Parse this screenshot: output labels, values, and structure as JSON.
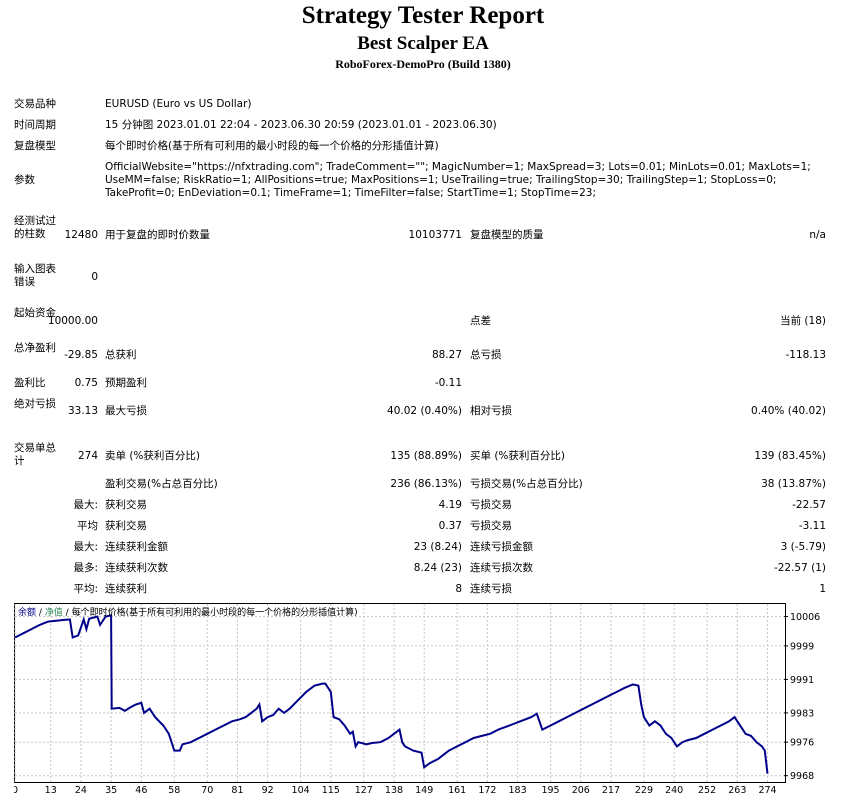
{
  "header": {
    "title": "Strategy Tester Report",
    "subtitle": "Best Scalper EA",
    "server": "RoboForex-DemoPro (Build 1380)"
  },
  "info": {
    "symbol_label": "交易品种",
    "symbol_value": "EURUSD (Euro vs US Dollar)",
    "period_label": "时间周期",
    "period_value": "15 分钟图 2023.01.01 22:04 - 2023.06.30 20:59 (2023.01.01 - 2023.06.30)",
    "model_label": "复盘模型",
    "model_value": "每个即时价格(基于所有可利用的最小时段的每一个价格的分形插值计算)",
    "params_label": "参数",
    "params_value": "OfficialWebsite=\"https://nfxtrading.com\"; TradeComment=\"\"; MagicNumber=1; MaxSpread=3; Lots=0.01; MinLots=0.01; MaxLots=1; UseMM=false; RiskRatio=1; AllPositions=true; MaxPositions=1; UseTrailing=true; TrailingStop=30; TrailingStep=1; StopLoss=0; TakeProfit=0; EnDeviation=0.1; TimeFrame=1; TimeFilter=false; StartTime=1; StopTime=23;"
  },
  "stats": {
    "bars_label": "经测试过的柱数",
    "bars_value": "12480",
    "ticks_label": "用于复盘的即时价数量",
    "ticks_value": "10103771",
    "quality_label": "复盘模型的质量",
    "quality_value": "n/a",
    "errors_label": "输入图表错误",
    "errors_value": "0",
    "deposit_label": "起始资金",
    "deposit_value": "10000.00",
    "spread_label": "点差",
    "spread_value": "当前 (18)",
    "net_label": "总净盈利",
    "net_value": "-29.85",
    "gross_profit_label": "总获利",
    "gross_profit_value": "88.27",
    "gross_loss_label": "总亏损",
    "gross_loss_value": "-118.13",
    "pf_label": "盈利比",
    "pf_value": "0.75",
    "expected_label": "预期盈利",
    "expected_value": "-0.11",
    "abs_dd_label": "绝对亏损",
    "abs_dd_value": "33.13",
    "max_dd_label": "最大亏损",
    "max_dd_value": "40.02 (0.40%)",
    "rel_dd_label": "相对亏损",
    "rel_dd_value": "0.40% (40.02)",
    "trades_label": "交易单总计",
    "trades_value": "274",
    "short_label": "卖单 (%获利百分比)",
    "short_value": "135 (88.89%)",
    "long_label": "买单 (%获利百分比)",
    "long_value": "139 (83.45%)",
    "profit_trades_label": "盈利交易(%占总百分比)",
    "profit_trades_value": "236 (86.13%)",
    "loss_trades_label": "亏损交易(%占总百分比)",
    "loss_trades_value": "38 (13.87%)",
    "largest_prefix": "最大:",
    "largest_profit_label": "获利交易",
    "largest_profit_value": "4.19",
    "largest_loss_label": "亏损交易",
    "largest_loss_value": "-22.57",
    "average_prefix": "平均",
    "average_profit_label": "获利交易",
    "average_profit_value": "0.37",
    "average_loss_label": "亏损交易",
    "average_loss_value": "-3.11",
    "max_prefix": "最大:",
    "consec_wins_label": "连续获利金额",
    "consec_wins_value": "23 (8.24)",
    "consec_losses_label": "连续亏损金额",
    "consec_losses_value": "3 (-5.79)",
    "most_prefix": "最多:",
    "consec_profit_label": "连续获利次数",
    "consec_profit_value": "8.24 (23)",
    "consec_loss_label": "连续亏损次数",
    "consec_loss_value": "-22.57 (1)",
    "avg_prefix": "平均:",
    "avg_wins_label": "连续获利",
    "avg_wins_value": "8",
    "avg_losses_label": "连续亏损",
    "avg_losses_value": "1"
  },
  "chart_legend": {
    "balance": "余额",
    "sep1": " / ",
    "equity": "净值",
    "sep2": " / ",
    "model": "每个即时价格(基于所有可利用的最小时段的每一个价格的分形插值计算)"
  },
  "chart_data": {
    "type": "line",
    "x_ticks": [
      0,
      13,
      24,
      35,
      46,
      58,
      70,
      81,
      92,
      104,
      115,
      127,
      138,
      149,
      161,
      172,
      183,
      195,
      206,
      217,
      229,
      240,
      252,
      263,
      274
    ],
    "y_ticks": [
      10006,
      9999,
      9991,
      9983,
      9976,
      9968
    ],
    "xlim": [
      0,
      280
    ],
    "ylim": [
      9966.5,
      10009
    ],
    "line_color": "#00008b",
    "series": [
      {
        "values": [
          [
            0,
            10001
          ],
          [
            3,
            10002
          ],
          [
            6,
            10003
          ],
          [
            9,
            10004
          ],
          [
            12,
            10004.8
          ],
          [
            15,
            10005
          ],
          [
            18,
            10005.2
          ],
          [
            20,
            10005.3
          ],
          [
            21,
            10001
          ],
          [
            23,
            10001.5
          ],
          [
            25,
            10005.3
          ],
          [
            26,
            10003
          ],
          [
            27,
            10005.5
          ],
          [
            30,
            10006
          ],
          [
            31,
            10004
          ],
          [
            33,
            10006
          ],
          [
            35,
            10006.3
          ],
          [
            35.2,
            9984
          ],
          [
            38,
            9984.2
          ],
          [
            40,
            9983.5
          ],
          [
            42,
            9984.3
          ],
          [
            44,
            9985
          ],
          [
            46,
            9985.4
          ],
          [
            47,
            9983
          ],
          [
            49,
            9984
          ],
          [
            51,
            9982
          ],
          [
            54,
            9980
          ],
          [
            56,
            9978
          ],
          [
            58,
            9974
          ],
          [
            60,
            9974
          ],
          [
            61,
            9975.5
          ],
          [
            64,
            9976
          ],
          [
            67,
            9977
          ],
          [
            70,
            9978
          ],
          [
            73,
            9979
          ],
          [
            76,
            9980
          ],
          [
            79,
            9981
          ],
          [
            82,
            9981.5
          ],
          [
            84,
            9982
          ],
          [
            86,
            9983
          ],
          [
            88,
            9984
          ],
          [
            89,
            9985
          ],
          [
            90,
            9981
          ],
          [
            92,
            9982
          ],
          [
            94,
            9982.5
          ],
          [
            96,
            9984
          ],
          [
            98,
            9983
          ],
          [
            100,
            9984
          ],
          [
            103,
            9986
          ],
          [
            106,
            9988
          ],
          [
            109,
            9989.5
          ],
          [
            112,
            9990
          ],
          [
            113,
            9990
          ],
          [
            114,
            9989
          ],
          [
            115,
            9988
          ],
          [
            116,
            9982
          ],
          [
            118,
            9981.5
          ],
          [
            120,
            9980
          ],
          [
            122,
            9978
          ],
          [
            123,
            9978.5
          ],
          [
            124,
            9975
          ],
          [
            125,
            9976
          ],
          [
            128,
            9975.5
          ],
          [
            130,
            9975.8
          ],
          [
            133,
            9976
          ],
          [
            136,
            9977
          ],
          [
            138,
            9978
          ],
          [
            140,
            9979
          ],
          [
            141,
            9976
          ],
          [
            142,
            9975
          ],
          [
            145,
            9974
          ],
          [
            148,
            9973.5
          ],
          [
            149,
            9970
          ],
          [
            151,
            9971
          ],
          [
            154,
            9972
          ],
          [
            156,
            9973
          ],
          [
            158,
            9974
          ],
          [
            161,
            9975
          ],
          [
            164,
            9976
          ],
          [
            167,
            9977
          ],
          [
            170,
            9977.5
          ],
          [
            173,
            9978
          ],
          [
            176,
            9979
          ],
          [
            180,
            9980
          ],
          [
            184,
            9981
          ],
          [
            188,
            9982
          ],
          [
            190,
            9982.8
          ],
          [
            192,
            9979
          ],
          [
            195,
            9980
          ],
          [
            198,
            9981
          ],
          [
            201,
            9982
          ],
          [
            204,
            9983
          ],
          [
            207,
            9984
          ],
          [
            210,
            9985
          ],
          [
            213,
            9986
          ],
          [
            216,
            9987
          ],
          [
            219,
            9988
          ],
          [
            222,
            9989
          ],
          [
            225,
            9989.8
          ],
          [
            227,
            9989.5
          ],
          [
            228,
            9985
          ],
          [
            229,
            9982
          ],
          [
            231,
            9980
          ],
          [
            233,
            9981
          ],
          [
            235,
            9980
          ],
          [
            237,
            9978
          ],
          [
            239,
            9977
          ],
          [
            241,
            9975
          ],
          [
            243,
            9976
          ],
          [
            245,
            9976.5
          ],
          [
            248,
            9977
          ],
          [
            251,
            9978
          ],
          [
            254,
            9979
          ],
          [
            257,
            9980
          ],
          [
            260,
            9981
          ],
          [
            262,
            9982
          ],
          [
            263,
            9981
          ],
          [
            265,
            9979
          ],
          [
            266,
            9978
          ],
          [
            268,
            9977.5
          ],
          [
            270,
            9976
          ],
          [
            272,
            9975
          ],
          [
            273,
            9974
          ],
          [
            274,
            9968.5
          ]
        ]
      }
    ]
  }
}
